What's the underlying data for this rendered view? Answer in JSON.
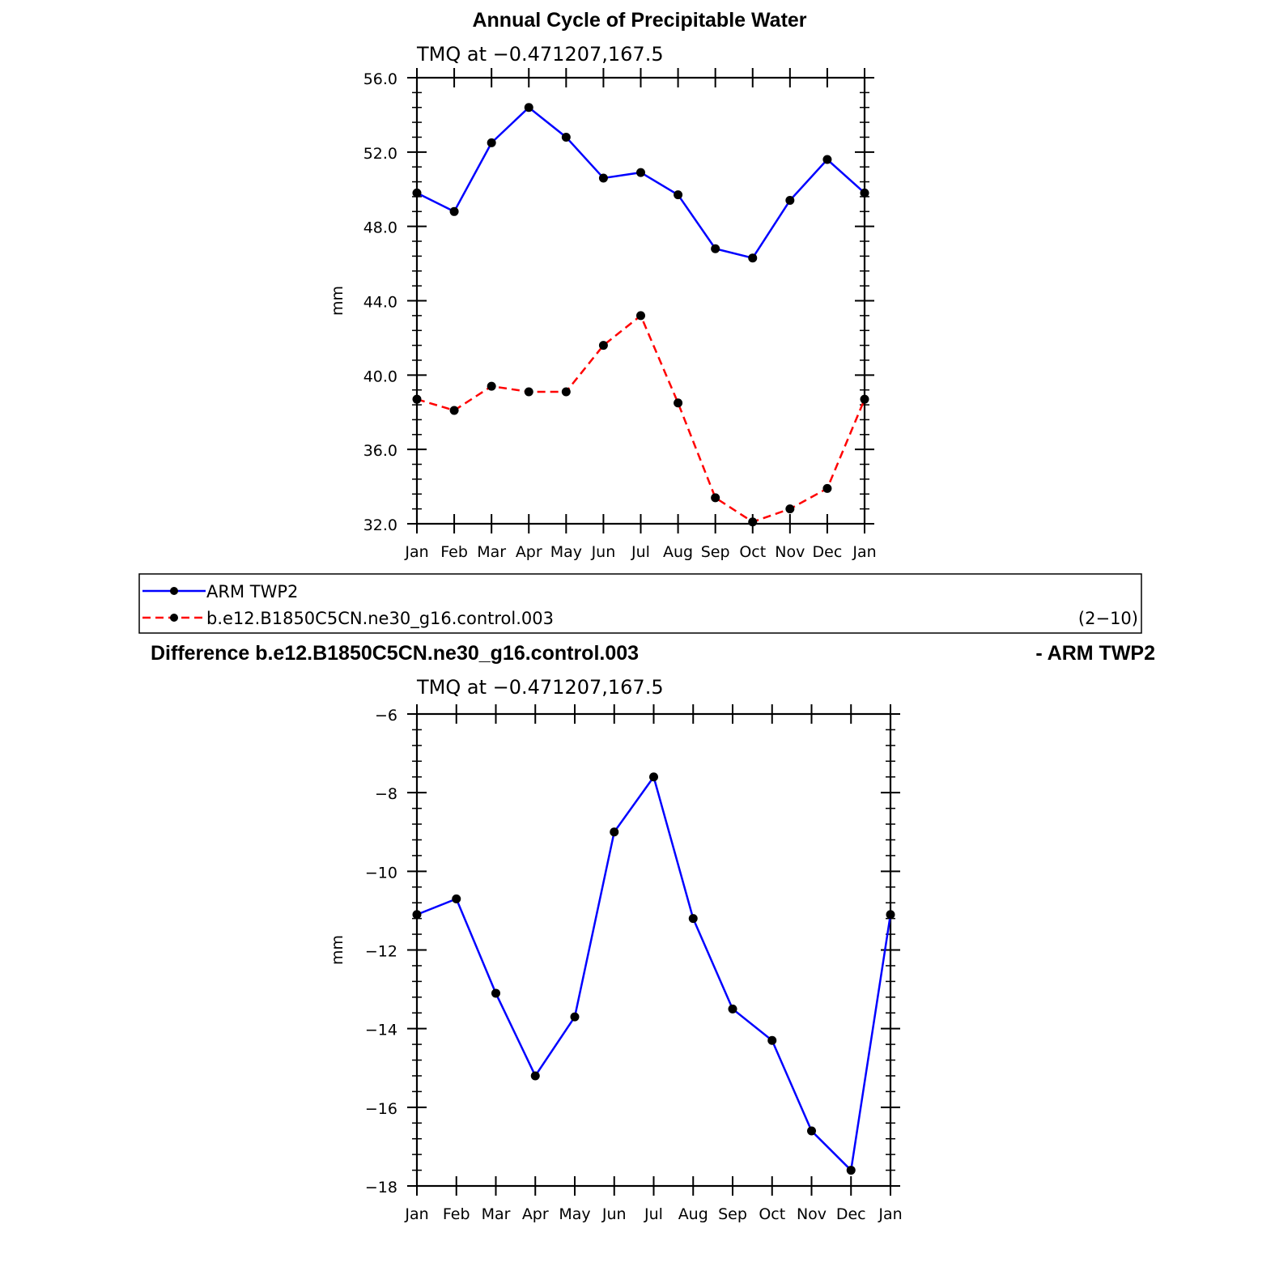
{
  "chart_data": [
    {
      "type": "line",
      "title": "Annual Cycle of Precipitable Water",
      "subtitle": "TMQ  at  −0.471207,167.5",
      "ylabel": "mm",
      "xlabel": "",
      "categories": [
        "Jan",
        "Feb",
        "Mar",
        "Apr",
        "May",
        "Jun",
        "Jul",
        "Aug",
        "Sep",
        "Oct",
        "Nov",
        "Dec",
        "Jan"
      ],
      "ylim": [
        32,
        56
      ],
      "yticks": [
        "32.0",
        "36.0",
        "40.0",
        "44.0",
        "48.0",
        "52.0",
        "56.0"
      ],
      "grid": false,
      "series": [
        {
          "name": "ARM TWP2",
          "color": "#0000ff",
          "dash": "solid",
          "values": [
            49.8,
            48.8,
            52.5,
            54.4,
            52.8,
            50.6,
            50.9,
            49.7,
            46.8,
            46.3,
            49.4,
            51.6,
            49.8
          ]
        },
        {
          "name": "b.e12.B1850C5CN.ne30_g16.control.003",
          "color": "#ff0000",
          "dash": "dashed",
          "values": [
            38.7,
            38.1,
            39.4,
            39.1,
            39.1,
            41.6,
            43.2,
            38.5,
            33.4,
            32.1,
            32.8,
            33.9,
            38.7
          ]
        }
      ]
    },
    {
      "type": "line",
      "title": "Difference b.e12.B1850C5CN.ne30_g16.control.003",
      "title_right": "- ARM TWP2",
      "subtitle": "TMQ  at  −0.471207,167.5",
      "ylabel": "mm",
      "xlabel": "",
      "categories": [
        "Jan",
        "Feb",
        "Mar",
        "Apr",
        "May",
        "Jun",
        "Jul",
        "Aug",
        "Sep",
        "Oct",
        "Nov",
        "Dec",
        "Jan"
      ],
      "ylim": [
        -18,
        -6
      ],
      "yticks": [
        "−18",
        "−16",
        "−14",
        "−12",
        "−10",
        "−8",
        "−6"
      ],
      "grid": false,
      "series": [
        {
          "name": "",
          "color": "#0000ff",
          "dash": "solid",
          "values": [
            -11.1,
            -10.7,
            -13.1,
            -15.2,
            -13.7,
            -9.0,
            -7.6,
            -11.2,
            -13.5,
            -14.3,
            -16.6,
            -17.6,
            -11.1
          ]
        }
      ]
    }
  ],
  "legend": {
    "entries": [
      "ARM TWP2",
      "b.e12.B1850C5CN.ne30_g16.control.003"
    ],
    "note": "(2−10)"
  }
}
